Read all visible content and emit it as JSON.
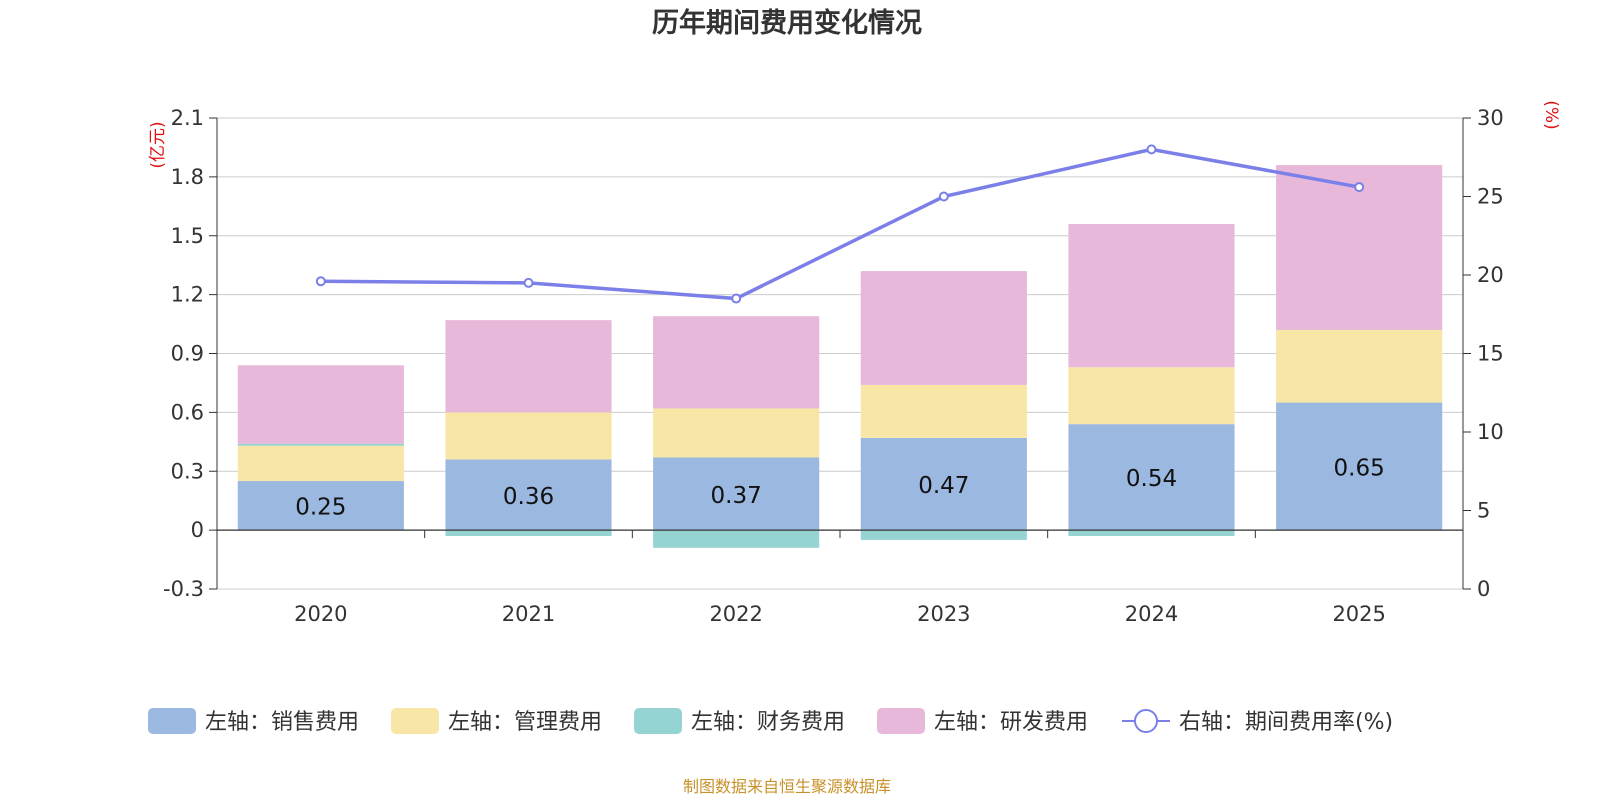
{
  "chart_data": {
    "type": "bar",
    "title": "历年期间费用变化情况",
    "categories": [
      "2020",
      "2021",
      "2022",
      "2023",
      "2024",
      "2025"
    ],
    "left_axis": {
      "unit": "(亿元)",
      "ylim": [
        -0.3,
        2.1
      ],
      "ticks": [
        -0.3,
        0,
        0.3,
        0.6,
        0.9,
        1.2,
        1.5,
        1.8,
        2.1
      ],
      "tick_labels": [
        "-0.3",
        "0",
        "0.3",
        "0.6",
        "0.9",
        "1.2",
        "1.5",
        "1.8",
        "2.1"
      ]
    },
    "right_axis": {
      "unit": "(%)",
      "ylim": [
        0,
        30
      ],
      "ticks": [
        0,
        5,
        10,
        15,
        20,
        25,
        30
      ],
      "tick_labels": [
        "0",
        "5",
        "10",
        "15",
        "20",
        "25",
        "30"
      ]
    },
    "series": [
      {
        "name": "左轴：销售费用",
        "type": "bar",
        "axis": "left",
        "color": "#9bb8e1",
        "values": [
          0.25,
          0.36,
          0.37,
          0.47,
          0.54,
          0.65
        ],
        "labels": [
          "0.25",
          "0.36",
          "0.37",
          "0.47",
          "0.54",
          "0.65"
        ]
      },
      {
        "name": "左轴：管理费用",
        "type": "bar",
        "axis": "left",
        "color": "#f8e6a7",
        "values": [
          0.18,
          0.24,
          0.25,
          0.27,
          0.29,
          0.37
        ]
      },
      {
        "name": "左轴：财务费用",
        "type": "bar",
        "axis": "left",
        "color": "#96d3d3",
        "values": [
          0.01,
          -0.03,
          -0.09,
          -0.05,
          -0.03,
          0.0
        ]
      },
      {
        "name": "左轴：研发费用",
        "type": "bar",
        "axis": "left",
        "color": "#e7b8d9",
        "values": [
          0.4,
          0.47,
          0.47,
          0.58,
          0.73,
          0.84
        ]
      },
      {
        "name": "右轴：期间费用率(%)",
        "type": "line",
        "axis": "right",
        "color": "#7b7fe8",
        "values": [
          19.6,
          19.5,
          18.5,
          25.0,
          28.0,
          25.6
        ]
      }
    ]
  },
  "source": "制图数据来自恒生聚源数据库"
}
